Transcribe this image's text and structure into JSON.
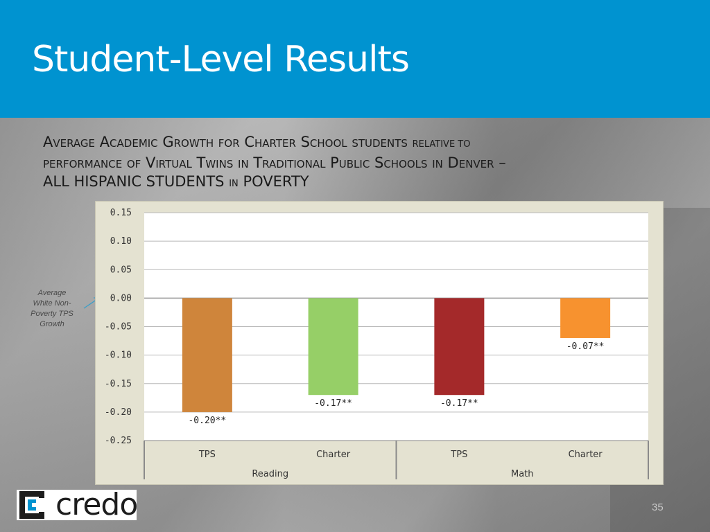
{
  "header": {
    "title": "Student-Level Results"
  },
  "subtitle": {
    "line1": [
      "Average Academic Growth for Charter School students",
      "relative to"
    ],
    "line2": "performance of Virtual Twins in Traditional Public Schools in Denver –",
    "line3": [
      "ALL HISPANIC STUDENTS",
      "in",
      "POVERTY"
    ]
  },
  "side_note": {
    "line1": "Average",
    "line2": "White Non-",
    "line3": "Poverty TPS",
    "line4": "Growth"
  },
  "logo": {
    "text": "credo"
  },
  "page_number": "35",
  "colors": {
    "header_bg": "#0093d0",
    "bar_reading_tps": "#cf853b",
    "bar_reading_charter": "#96cf67",
    "bar_math_tps": "#a4292a",
    "bar_math_charter": "#f7922f",
    "arrow": "#3a9fc8"
  },
  "chart_data": {
    "type": "bar",
    "categories": [
      "TPS",
      "Charter",
      "TPS",
      "Charter"
    ],
    "groups": [
      "Reading",
      "Math"
    ],
    "group_of_category": [
      0,
      0,
      1,
      1
    ],
    "values": [
      -0.2,
      -0.17,
      -0.17,
      -0.07
    ],
    "data_labels": [
      "-0.20**",
      "-0.17**",
      "-0.17**",
      "-0.07**"
    ],
    "bar_colors": [
      "#cf853b",
      "#96cf67",
      "#a4292a",
      "#f7922f"
    ],
    "y_ticks": [
      "0.15",
      "0.10",
      "0.05",
      "0.00",
      "-0.05",
      "-0.10",
      "-0.15",
      "-0.20",
      "-0.25"
    ],
    "y_tick_values": [
      0.15,
      0.1,
      0.05,
      0.0,
      -0.05,
      -0.1,
      -0.15,
      -0.2,
      -0.25
    ],
    "ylim": [
      -0.25,
      0.15
    ],
    "grid": true,
    "title": "",
    "xlabel": "",
    "ylabel": ""
  }
}
